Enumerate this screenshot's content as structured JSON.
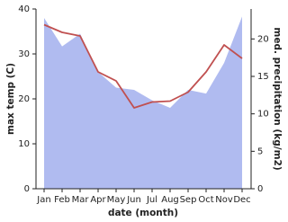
{
  "chart_data": {
    "type": "area_line",
    "x_label": "date (month)",
    "categories": [
      "Jan",
      "Feb",
      "Mar",
      "Apr",
      "May",
      "Jun",
      "Jul",
      "Aug",
      "Sep",
      "Oct",
      "Nov",
      "Dec"
    ],
    "series": [
      {
        "name": "max temp (C)",
        "color": "#c05050",
        "axis": "y",
        "kind": "line",
        "values": [
          36.5,
          34.8,
          34,
          26,
          24,
          18,
          19.3,
          19.5,
          21.5,
          26,
          32,
          29
        ]
      },
      {
        "name": "med. precipitation (kg/m2)",
        "color": "#b0bbf0",
        "axis": "y2",
        "kind": "area",
        "values": [
          22.8,
          19,
          20.7,
          15.6,
          13.5,
          13.2,
          11.8,
          10.8,
          13.2,
          12.7,
          16.8,
          23
        ]
      }
    ],
    "ylim": [
      0,
      40
    ],
    "yticks": [
      0,
      10,
      20,
      30,
      40
    ],
    "y2lim": [
      0,
      24
    ],
    "y2ticks": [
      0,
      5,
      10,
      15,
      20
    ]
  }
}
